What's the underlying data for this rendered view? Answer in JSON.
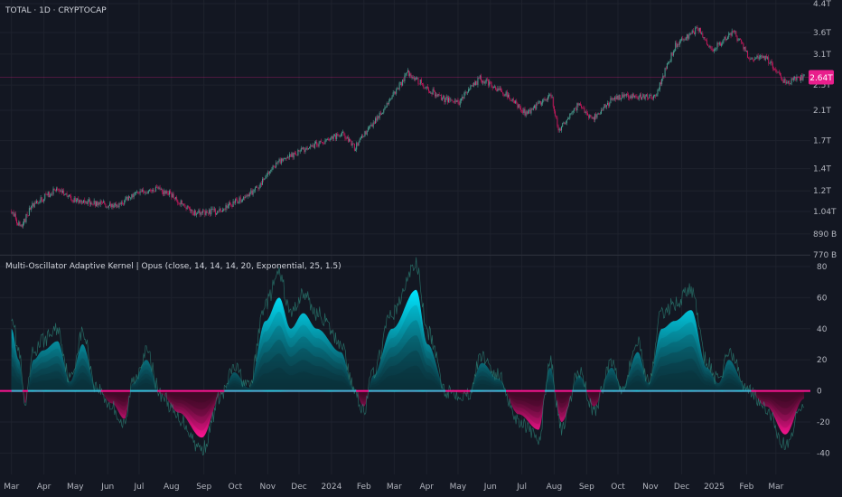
{
  "header": {
    "symbol_label": "TOTAL · 1D · CRYPTOCAP",
    "indicator_label": "Multi-Oscillator Adaptive Kernel | Opus (close, 14, 14, 14, 20, Exponential, 25, 1.5)"
  },
  "colors": {
    "background": "#131722",
    "grid": "#1e222d",
    "candle_up": "#4a9e90",
    "candle_down": "#c2185b",
    "osc_positive": "#00e5ff",
    "osc_negative": "#ff1493",
    "price_badge": "#e91e8c",
    "zero_line_pos": "#26c6da",
    "zero_line_neg": "#ff1493"
  },
  "chart_data": [
    {
      "type": "candlestick",
      "title": "TOTAL · 1D · CRYPTOCAP",
      "y_scale": "log",
      "ylim": [
        0.77,
        4.4
      ],
      "y_unit": "T",
      "price_ticks": [
        "4.4T",
        "3.6T",
        "3.1T",
        "2.5T",
        "2.1T",
        "1.7T",
        "1.4T",
        "1.2T",
        "1.04T",
        "890 B",
        "770 B"
      ],
      "last_price_label": "2.64T",
      "last_price": 2.64,
      "x_ticks": [
        "Mar",
        "Apr",
        "May",
        "Jun",
        "Jul",
        "Aug",
        "Sep",
        "Oct",
        "Nov",
        "Dec",
        "2024",
        "Feb",
        "Mar",
        "Apr",
        "May",
        "Jun",
        "Jul",
        "Aug",
        "Sep",
        "Oct",
        "Nov",
        "Dec",
        "2025",
        "Feb",
        "Mar"
      ],
      "close_trend": [
        {
          "x": "2023-03-01",
          "y": 1.04
        },
        {
          "x": "2023-03-10",
          "y": 0.93
        },
        {
          "x": "2023-03-20",
          "y": 1.08
        },
        {
          "x": "2023-04-14",
          "y": 1.22
        },
        {
          "x": "2023-05-01",
          "y": 1.12
        },
        {
          "x": "2023-06-10",
          "y": 1.08
        },
        {
          "x": "2023-06-25",
          "y": 1.16
        },
        {
          "x": "2023-07-14",
          "y": 1.22
        },
        {
          "x": "2023-08-01",
          "y": 1.17
        },
        {
          "x": "2023-08-20",
          "y": 1.03
        },
        {
          "x": "2023-09-15",
          "y": 1.04
        },
        {
          "x": "2023-10-20",
          "y": 1.2
        },
        {
          "x": "2023-11-10",
          "y": 1.45
        },
        {
          "x": "2023-12-08",
          "y": 1.62
        },
        {
          "x": "2024-01-11",
          "y": 1.78
        },
        {
          "x": "2024-01-23",
          "y": 1.62
        },
        {
          "x": "2024-02-15",
          "y": 2.0
        },
        {
          "x": "2024-03-14",
          "y": 2.72
        },
        {
          "x": "2024-04-13",
          "y": 2.3
        },
        {
          "x": "2024-05-01",
          "y": 2.2
        },
        {
          "x": "2024-05-22",
          "y": 2.62
        },
        {
          "x": "2024-06-20",
          "y": 2.3
        },
        {
          "x": "2024-07-05",
          "y": 2.05
        },
        {
          "x": "2024-07-29",
          "y": 2.35
        },
        {
          "x": "2024-08-05",
          "y": 1.82
        },
        {
          "x": "2024-08-25",
          "y": 2.2
        },
        {
          "x": "2024-09-06",
          "y": 1.98
        },
        {
          "x": "2024-09-28",
          "y": 2.3
        },
        {
          "x": "2024-11-05",
          "y": 2.3
        },
        {
          "x": "2024-11-25",
          "y": 3.3
        },
        {
          "x": "2024-12-17",
          "y": 3.7
        },
        {
          "x": "2024-12-30",
          "y": 3.2
        },
        {
          "x": "2025-01-20",
          "y": 3.6
        },
        {
          "x": "2025-02-03",
          "y": 3.05
        },
        {
          "x": "2025-02-20",
          "y": 3.0
        },
        {
          "x": "2025-03-10",
          "y": 2.55
        },
        {
          "x": "2025-03-28",
          "y": 2.64
        }
      ]
    },
    {
      "type": "area",
      "title": "Multi-Oscillator Adaptive Kernel | Opus (close, 14, 14, 14, 20, Exponential, 25, 1.5)",
      "ylim": [
        -45,
        80
      ],
      "y_ticks": [
        80,
        60,
        40,
        20,
        0,
        -20,
        -40
      ],
      "kernel": [
        {
          "x": "2023-03-01",
          "y": 40
        },
        {
          "x": "2023-03-08",
          "y": 20
        },
        {
          "x": "2023-03-14",
          "y": -8
        },
        {
          "x": "2023-03-22",
          "y": 20
        },
        {
          "x": "2023-03-31",
          "y": 26
        },
        {
          "x": "2023-04-14",
          "y": 32
        },
        {
          "x": "2023-04-26",
          "y": 6
        },
        {
          "x": "2023-05-08",
          "y": 30
        },
        {
          "x": "2023-05-21",
          "y": 2
        },
        {
          "x": "2023-06-05",
          "y": -8
        },
        {
          "x": "2023-06-17",
          "y": -18
        },
        {
          "x": "2023-06-25",
          "y": 5
        },
        {
          "x": "2023-07-08",
          "y": 20
        },
        {
          "x": "2023-07-22",
          "y": -2
        },
        {
          "x": "2023-08-08",
          "y": -14
        },
        {
          "x": "2023-08-30",
          "y": -30
        },
        {
          "x": "2023-09-18",
          "y": -2
        },
        {
          "x": "2023-09-30",
          "y": 12
        },
        {
          "x": "2023-10-14",
          "y": 2
        },
        {
          "x": "2023-10-30",
          "y": 45
        },
        {
          "x": "2023-11-12",
          "y": 60
        },
        {
          "x": "2023-11-23",
          "y": 40
        },
        {
          "x": "2023-12-05",
          "y": 50
        },
        {
          "x": "2023-12-18",
          "y": 40
        },
        {
          "x": "2024-01-10",
          "y": 25
        },
        {
          "x": "2024-01-22",
          "y": 2
        },
        {
          "x": "2024-02-01",
          "y": -10
        },
        {
          "x": "2024-02-10",
          "y": 10
        },
        {
          "x": "2024-02-28",
          "y": 40
        },
        {
          "x": "2024-03-22",
          "y": 65
        },
        {
          "x": "2024-04-02",
          "y": 30
        },
        {
          "x": "2024-04-20",
          "y": 0
        },
        {
          "x": "2024-05-10",
          "y": -2
        },
        {
          "x": "2024-05-24",
          "y": 18
        },
        {
          "x": "2024-06-08",
          "y": 8
        },
        {
          "x": "2024-06-28",
          "y": -15
        },
        {
          "x": "2024-07-17",
          "y": -25
        },
        {
          "x": "2024-07-28",
          "y": 15
        },
        {
          "x": "2024-08-08",
          "y": -20
        },
        {
          "x": "2024-08-25",
          "y": 10
        },
        {
          "x": "2024-09-08",
          "y": -10
        },
        {
          "x": "2024-09-25",
          "y": 15
        },
        {
          "x": "2024-10-05",
          "y": 2
        },
        {
          "x": "2024-10-20",
          "y": 25
        },
        {
          "x": "2024-10-30",
          "y": 5
        },
        {
          "x": "2024-11-12",
          "y": 40
        },
        {
          "x": "2024-11-24",
          "y": 45
        },
        {
          "x": "2024-12-10",
          "y": 52
        },
        {
          "x": "2024-12-25",
          "y": 15
        },
        {
          "x": "2025-01-05",
          "y": 5
        },
        {
          "x": "2025-01-15",
          "y": 20
        },
        {
          "x": "2025-02-01",
          "y": 2
        },
        {
          "x": "2025-02-20",
          "y": -10
        },
        {
          "x": "2025-03-10",
          "y": -28
        },
        {
          "x": "2025-03-28",
          "y": -5
        }
      ]
    }
  ]
}
